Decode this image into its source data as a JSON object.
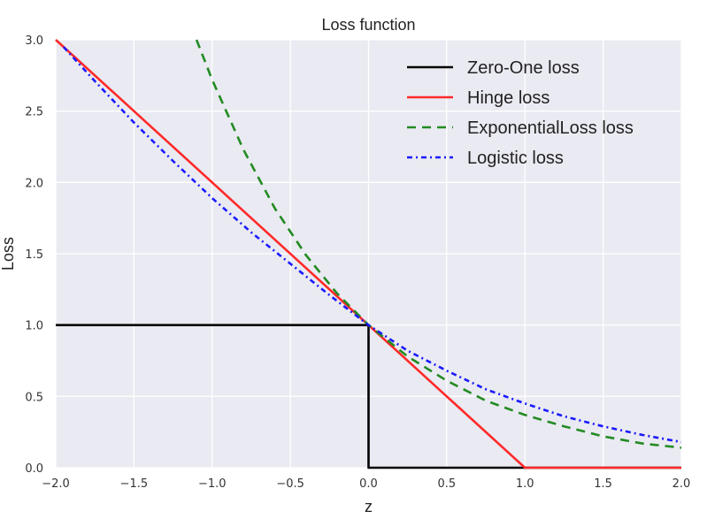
{
  "chart_data": {
    "type": "line",
    "title": "Loss function",
    "xlabel": "z",
    "ylabel": "Loss",
    "xlim": [
      -2.0,
      2.0
    ],
    "ylim": [
      0.0,
      3.0
    ],
    "grid": true,
    "legend_position": "top-right",
    "xticks": [
      "-2.0",
      "-1.5",
      "-1.0",
      "-0.5",
      "0.0",
      "0.5",
      "1.0",
      "1.5",
      "2.0"
    ],
    "yticks": [
      "0.0",
      "0.5",
      "1.0",
      "1.5",
      "2.0",
      "2.5",
      "3.0"
    ],
    "series": [
      {
        "name": "Zero-One loss",
        "color": "#000000",
        "style": "solid",
        "x": [
          -2.0,
          0.0,
          0.0,
          2.0
        ],
        "y": [
          1.0,
          1.0,
          0.0,
          0.0
        ]
      },
      {
        "name": "Hinge loss",
        "color": "#ff2a2a",
        "style": "solid",
        "x": [
          -2.0,
          1.0,
          2.0
        ],
        "y": [
          3.0,
          0.0,
          0.0
        ]
      },
      {
        "name": "ExponentialLoss loss",
        "color": "#228b22",
        "style": "dashed",
        "x": [
          -1.1,
          -1.0,
          -0.8,
          -0.6,
          -0.4,
          -0.2,
          0.0,
          0.25,
          0.5,
          0.75,
          1.0,
          1.25,
          1.5,
          1.75,
          2.0
        ],
        "y": [
          3.0,
          2.72,
          2.23,
          1.82,
          1.49,
          1.22,
          1.0,
          0.78,
          0.61,
          0.47,
          0.37,
          0.29,
          0.22,
          0.17,
          0.14
        ]
      },
      {
        "name": "Logistic loss",
        "color": "#1a1aff",
        "style": "dashdot",
        "x": [
          -1.95,
          -1.75,
          -1.5,
          -1.25,
          -1.0,
          -0.75,
          -0.5,
          -0.25,
          0.0,
          0.25,
          0.5,
          0.75,
          1.0,
          1.25,
          1.5,
          1.75,
          2.0
        ],
        "y": [
          2.95,
          2.71,
          2.42,
          2.15,
          1.89,
          1.65,
          1.43,
          1.21,
          1.0,
          0.82,
          0.68,
          0.55,
          0.45,
          0.36,
          0.29,
          0.23,
          0.18
        ]
      }
    ]
  }
}
